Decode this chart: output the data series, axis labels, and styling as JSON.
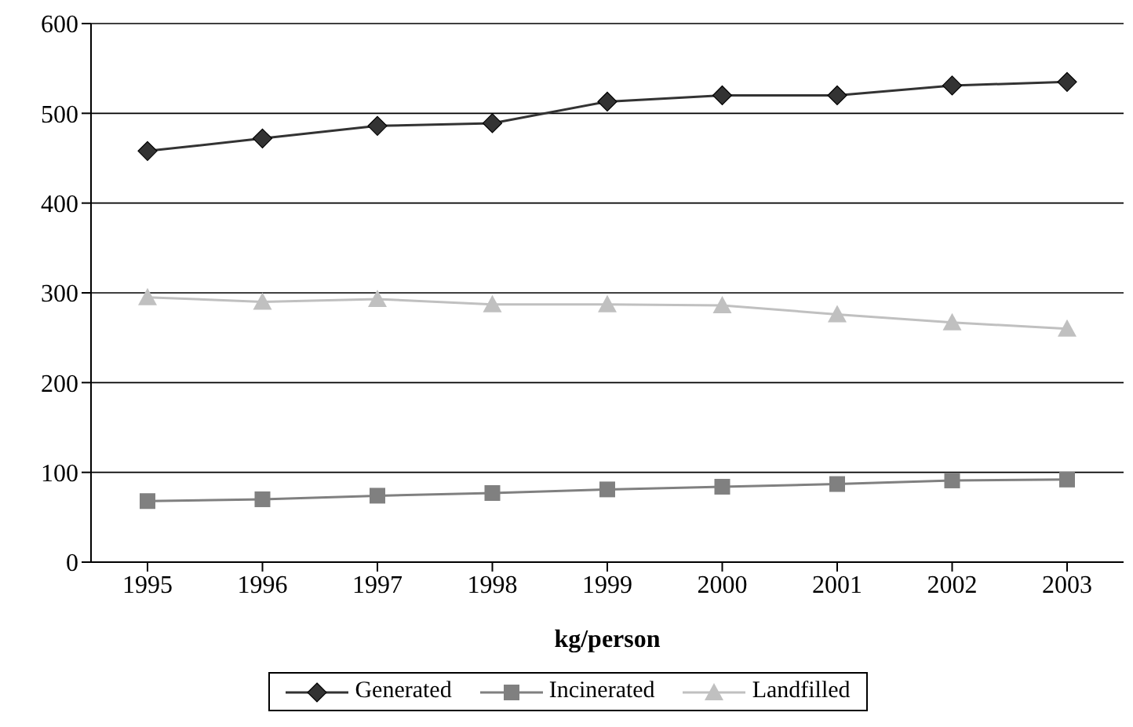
{
  "chart_data": {
    "type": "line",
    "xlabel": "kg/person",
    "categories": [
      "1995",
      "1996",
      "1997",
      "1998",
      "1999",
      "2000",
      "2001",
      "2002",
      "2003"
    ],
    "series": [
      {
        "name": "Generated",
        "color": "#333333",
        "marker": "diamond",
        "values": [
          458,
          472,
          486,
          489,
          513,
          520,
          520,
          531,
          535
        ]
      },
      {
        "name": "Incinerated",
        "color": "#808080",
        "marker": "square",
        "values": [
          68,
          70,
          74,
          77,
          81,
          84,
          87,
          91,
          92
        ]
      },
      {
        "name": "Landfilled",
        "color": "#c0c0c0",
        "marker": "triangle",
        "values": [
          295,
          290,
          293,
          287,
          287,
          286,
          276,
          267,
          260
        ]
      }
    ],
    "ylim": [
      0,
      600
    ],
    "yticks": [
      0,
      100,
      200,
      300,
      400,
      500,
      600
    ],
    "grid": "y",
    "legend": "bottom",
    "line_style": "solid"
  }
}
